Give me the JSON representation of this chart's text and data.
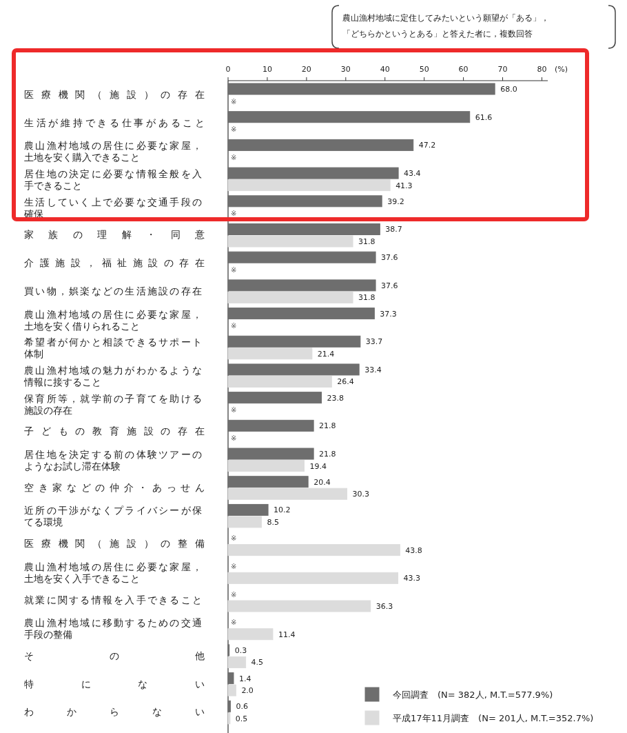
{
  "chart_data": {
    "type": "bar",
    "orientation": "horizontal",
    "annotations": [
      "農山漁村地域に定住してみたいという願望が「ある」，「どちらかというとある」と答えた者に，複数回答"
    ],
    "xlabel": "(%)",
    "categories": [
      "医療機関（施設）の存在",
      "生活が維持できる仕事があること",
      "農山漁村地域の居住に必要な家屋，土地を安く購入できること",
      "居住地の決定に必要な情報全般を入手できること",
      "生活していく上で必要な交通手段の確保",
      "家族の理解・同意",
      "介護施設，福祉施設の存在",
      "買い物，娯楽などの生活施設の存在",
      "農山漁村地域の居住に必要な家屋，土地を安く借りられること",
      "希望者が何かと相談できるサポート体制",
      "農山漁村地域の魅力がわかるような情報に接すること",
      "保育所等，就学前の子育てを助ける施設の存在",
      "子どもの教育施設の存在",
      "居住地を決定する前の体験ツアーのようなお試し滞在体験",
      "空き家などの仲介・あっせん",
      "近所の干渉がなくプライバシーが保てる環境",
      "医療機関（施設）の整備",
      "農山漁村地域の居住に必要な家屋，土地を安く入手できること",
      "就業に関する情報を入手できること",
      "農山漁村地域に移動するための交通手段の整備",
      "その他",
      "特にない",
      "わからない"
    ],
    "series": [
      {
        "name": "今回調査　(N= 382人, M.T.=577.9%)",
        "color": "#6e6e6e",
        "values": [
          68.0,
          61.6,
          47.2,
          43.4,
          39.2,
          38.7,
          37.6,
          37.6,
          37.3,
          33.7,
          33.4,
          23.8,
          21.8,
          21.8,
          20.4,
          10.2,
          null,
          null,
          null,
          null,
          0.3,
          1.4,
          0.6
        ],
        "value_labels": [
          "68.0",
          "61.6",
          "47.2",
          "43.4",
          "39.2",
          "38.7",
          "37.6",
          "37.6",
          "37.3",
          "33.7",
          "33.4",
          "23.8",
          "21.8",
          "21.8",
          "20.4",
          "10.2",
          "※",
          "※",
          "※",
          "※",
          "0.3",
          "1.4",
          "0.6"
        ]
      },
      {
        "name": "平成17年11月調査　(N= 201人, M.T.=352.7%)",
        "color": "#dcdcdc",
        "values": [
          null,
          null,
          null,
          41.3,
          null,
          31.8,
          null,
          31.8,
          null,
          21.4,
          26.4,
          null,
          null,
          19.4,
          30.3,
          8.5,
          43.8,
          43.3,
          36.3,
          11.4,
          4.5,
          2.0,
          0.5
        ],
        "value_labels": [
          "※",
          "※",
          "※",
          "41.3",
          "※",
          "31.8",
          "※",
          "31.8",
          "※",
          "21.4",
          "26.4",
          "※",
          "※",
          "19.4",
          "30.3",
          "8.5",
          "43.8",
          "43.3",
          "36.3",
          "11.4",
          "4.5",
          "2.0",
          "0.5"
        ]
      }
    ],
    "xlim": [
      0,
      81.5
    ],
    "xticks": [
      0,
      10,
      20,
      30,
      40,
      50,
      60,
      70,
      80
    ],
    "legend": "bottom right"
  }
}
